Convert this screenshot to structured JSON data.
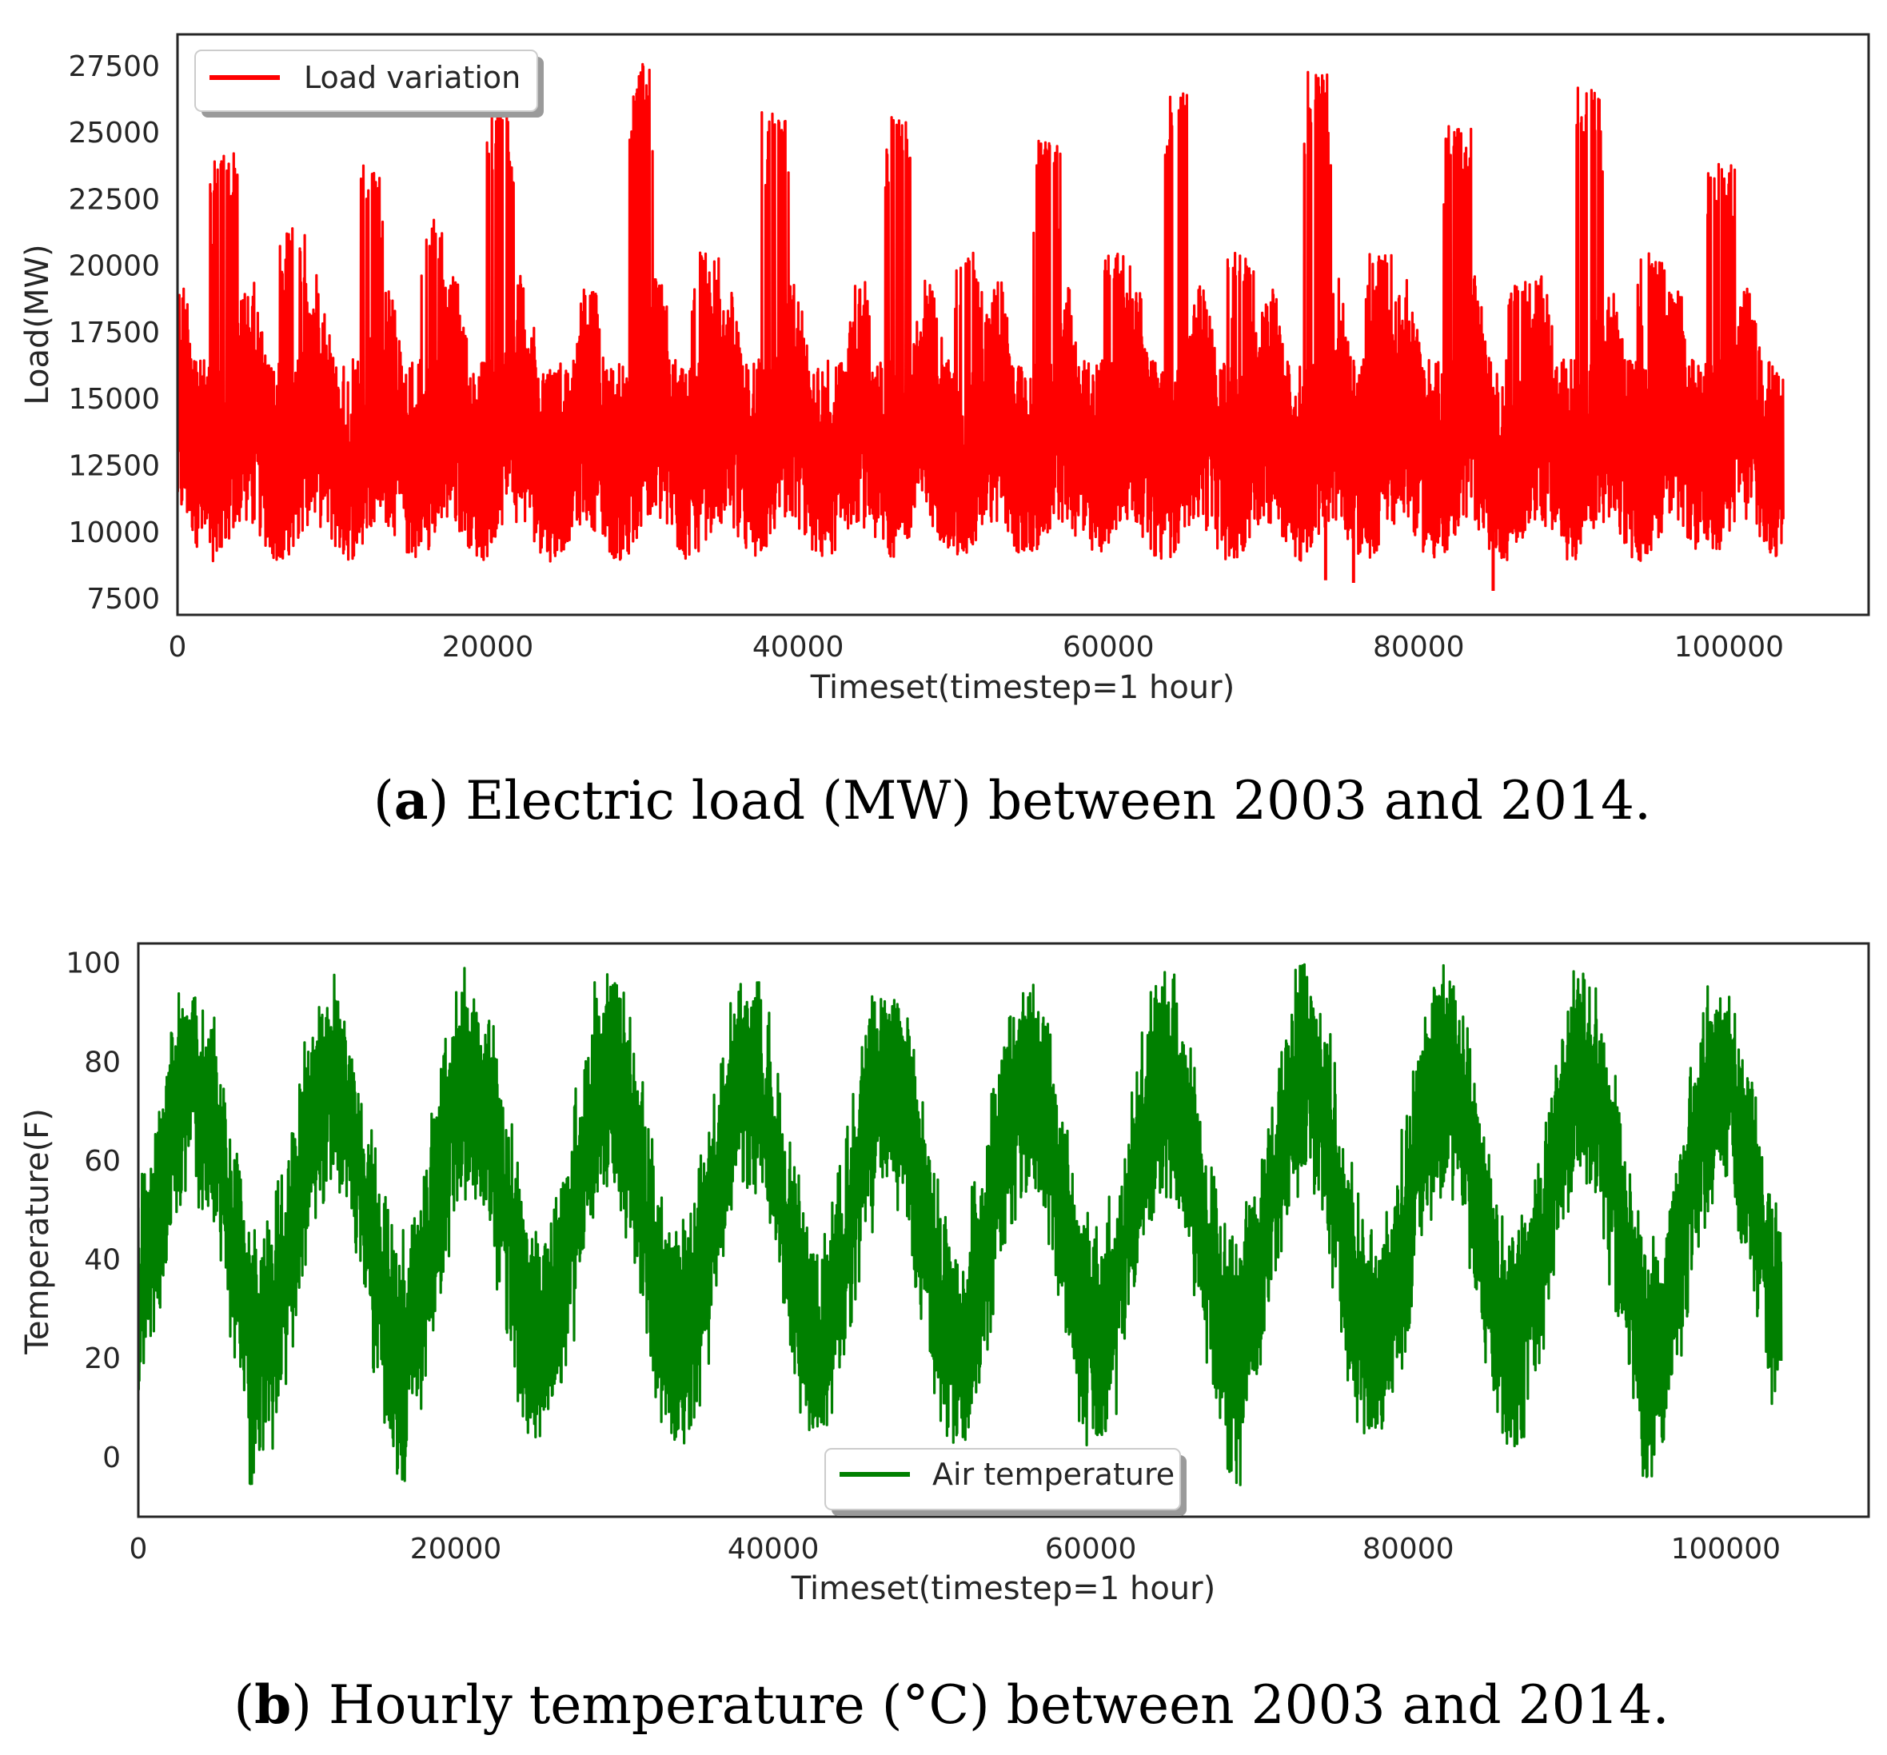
{
  "chart_data": [
    {
      "type": "line",
      "panel": "a",
      "caption_letter": "a",
      "caption_text": ") Electric load (MW) between 2003 and 2014.",
      "title": "",
      "xlabel": "Timeset(timestep=1 hour)",
      "ylabel": "Load(MW)",
      "xlim": [
        0,
        109000
      ],
      "ylim": [
        6900,
        28700
      ],
      "xticks": [
        0,
        20000,
        40000,
        60000,
        80000,
        100000
      ],
      "xtick_labels": [
        "0",
        "20000",
        "40000",
        "60000",
        "80000",
        "100000"
      ],
      "yticks": [
        7500,
        10000,
        12500,
        15000,
        17500,
        20000,
        22500,
        25000,
        27500
      ],
      "ytick_labels": [
        "7500",
        "10000",
        "12500",
        "15000",
        "17500",
        "20000",
        "22500",
        "25000",
        "27500"
      ],
      "grid": false,
      "legend": {
        "entries": [
          "Load variation"
        ],
        "placement": "upper-left"
      },
      "series": [
        {
          "name": "Load variation",
          "color": "#ff0000",
          "n_points": 103500,
          "x_range": [
            0,
            103500
          ],
          "typical_min": 9000,
          "typical_max": 20000,
          "min": 7800,
          "max": 27600,
          "seasonal_peaks": [
            {
              "x": 3000,
              "value": 24300
            },
            {
              "x": 7500,
              "value": 21500
            },
            {
              "x": 12500,
              "value": 23800
            },
            {
              "x": 16500,
              "value": 22000
            },
            {
              "x": 20800,
              "value": 26000
            },
            {
              "x": 29800,
              "value": 27600
            },
            {
              "x": 34000,
              "value": 20500
            },
            {
              "x": 38500,
              "value": 25800
            },
            {
              "x": 46500,
              "value": 25600
            },
            {
              "x": 51000,
              "value": 20500
            },
            {
              "x": 56000,
              "value": 24700
            },
            {
              "x": 60500,
              "value": 20500
            },
            {
              "x": 64500,
              "value": 26500
            },
            {
              "x": 68500,
              "value": 20500
            },
            {
              "x": 73500,
              "value": 27300
            },
            {
              "x": 77500,
              "value": 20500
            },
            {
              "x": 82500,
              "value": 25300
            },
            {
              "x": 86500,
              "value": 19500
            },
            {
              "x": 91000,
              "value": 26900
            },
            {
              "x": 95000,
              "value": 20500
            },
            {
              "x": 99500,
              "value": 24000
            }
          ],
          "notable_lows": [
            {
              "x": 74000,
              "value": 8200
            },
            {
              "x": 75800,
              "value": 8100
            },
            {
              "x": 84800,
              "value": 7800
            }
          ]
        }
      ]
    },
    {
      "type": "line",
      "panel": "b",
      "caption_letter": "b",
      "caption_text": ") Hourly temperature (°C) between 2003 and 2014.",
      "title": "",
      "xlabel": "Timeset(timestep=1 hour)",
      "ylabel": "Temperature(F)",
      "xlim": [
        0,
        109000
      ],
      "ylim": [
        -12,
        104
      ],
      "xticks": [
        0,
        20000,
        40000,
        60000,
        80000,
        100000
      ],
      "xtick_labels": [
        "0",
        "20000",
        "40000",
        "60000",
        "80000",
        "100000"
      ],
      "yticks": [
        0,
        20,
        40,
        60,
        80,
        100
      ],
      "ytick_labels": [
        "0",
        "20",
        "40",
        "60",
        "80",
        "100"
      ],
      "grid": false,
      "legend": {
        "entries": [
          "Air temperature"
        ],
        "placement": "lower-center"
      },
      "series": [
        {
          "name": "Air temperature",
          "color": "#008000",
          "n_points": 103500,
          "x_range": [
            0,
            103500
          ],
          "min": -7,
          "max": 100,
          "seasonal_peaks": [
            {
              "x": 3200,
              "value": 91
            },
            {
              "x": 11800,
              "value": 90
            },
            {
              "x": 21000,
              "value": 93
            },
            {
              "x": 30000,
              "value": 96
            },
            {
              "x": 38500,
              "value": 93
            },
            {
              "x": 47500,
              "value": 92
            },
            {
              "x": 56000,
              "value": 91
            },
            {
              "x": 64500,
              "value": 96
            },
            {
              "x": 73500,
              "value": 100
            },
            {
              "x": 82000,
              "value": 95
            },
            {
              "x": 90800,
              "value": 95
            },
            {
              "x": 99500,
              "value": 89
            }
          ],
          "seasonal_troughs": [
            {
              "x": 7500,
              "value": -7
            },
            {
              "x": 16500,
              "value": -5
            },
            {
              "x": 25000,
              "value": 4
            },
            {
              "x": 34000,
              "value": 2
            },
            {
              "x": 43000,
              "value": 6
            },
            {
              "x": 51800,
              "value": 3
            },
            {
              "x": 60500,
              "value": 2
            },
            {
              "x": 69000,
              "value": -6
            },
            {
              "x": 78000,
              "value": 4
            },
            {
              "x": 86800,
              "value": 2
            },
            {
              "x": 95200,
              "value": -4
            }
          ]
        }
      ]
    }
  ]
}
